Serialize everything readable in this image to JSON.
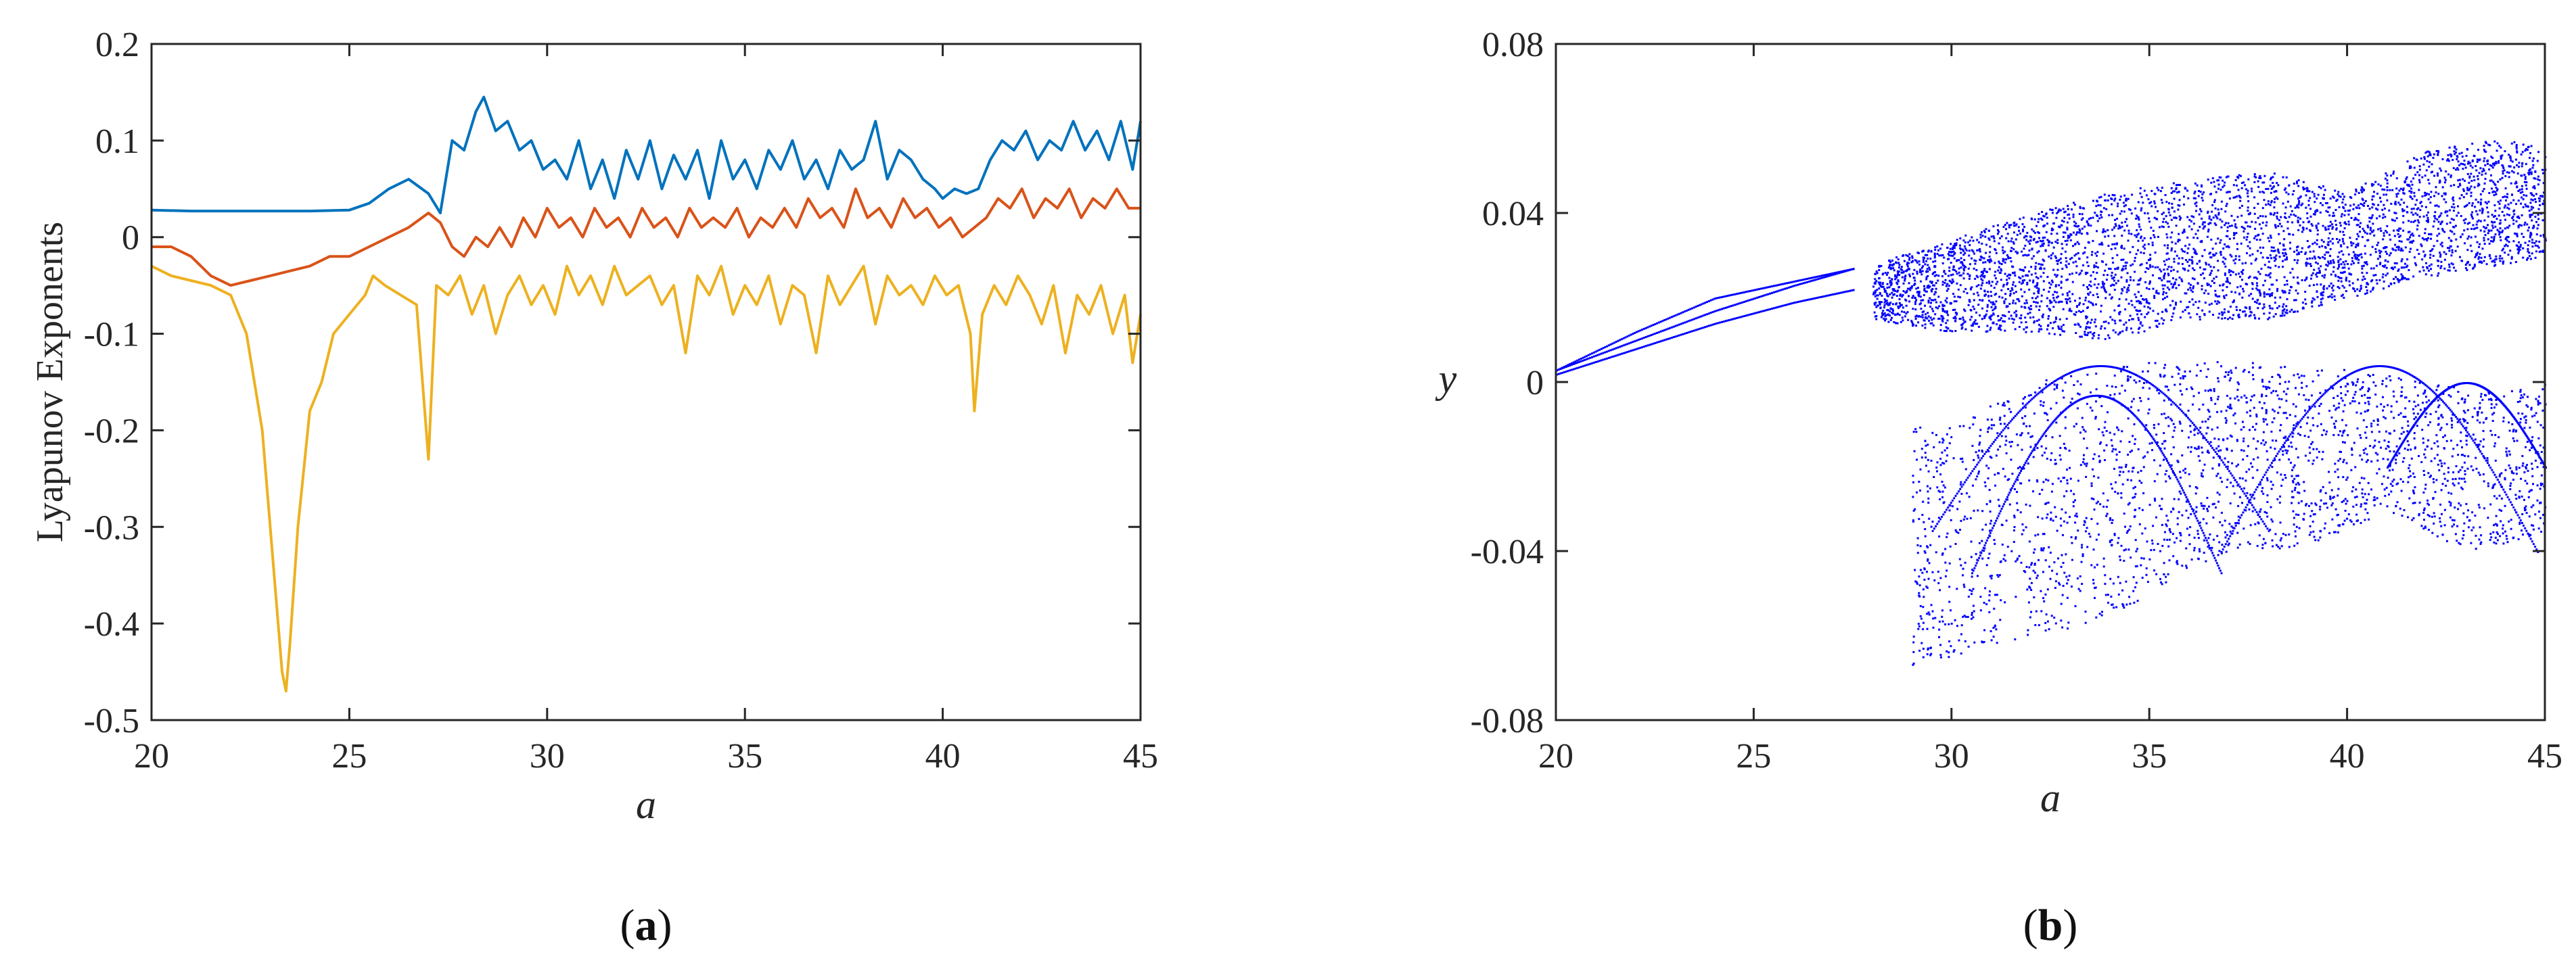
{
  "chart_data": [
    {
      "id": "a",
      "type": "line",
      "panel_label": {
        "open": "(",
        "letter": "a",
        "close": ")"
      },
      "xlabel": "a",
      "ylabel": "Lyapunov Exponents",
      "xlim": [
        20,
        45
      ],
      "ylim": [
        -0.5,
        0.2
      ],
      "xticks": [
        "20",
        "25",
        "30",
        "35",
        "40",
        "45"
      ],
      "yticks": [
        "0.2",
        "0.1",
        "0",
        "-0.1",
        "-0.2",
        "-0.3",
        "-0.4",
        "-0.5"
      ],
      "grid": false,
      "series": [
        {
          "color": "#0072BD",
          "x": [
            20,
            21,
            22,
            23,
            24,
            25,
            25.5,
            26,
            26.5,
            27,
            27.3,
            27.6,
            27.9,
            28.2,
            28.4,
            28.7,
            29,
            29.3,
            29.6,
            29.9,
            30.2,
            30.5,
            30.8,
            31.1,
            31.4,
            31.7,
            32,
            32.3,
            32.6,
            32.9,
            33.2,
            33.5,
            33.8,
            34.1,
            34.4,
            34.7,
            35,
            35.3,
            35.6,
            35.9,
            36.2,
            36.5,
            36.8,
            37.1,
            37.4,
            37.7,
            38,
            38.3,
            38.6,
            38.9,
            39.2,
            39.5,
            39.8,
            40,
            40.3,
            40.6,
            40.9,
            41.2,
            41.5,
            41.8,
            42.1,
            42.4,
            42.7,
            43,
            43.3,
            43.6,
            43.9,
            44.2,
            44.5,
            44.8,
            45
          ],
          "values": [
            0.028,
            0.027,
            0.027,
            0.027,
            0.027,
            0.028,
            0.035,
            0.05,
            0.06,
            0.045,
            0.025,
            0.1,
            0.09,
            0.13,
            0.145,
            0.11,
            0.12,
            0.09,
            0.1,
            0.07,
            0.08,
            0.06,
            0.1,
            0.05,
            0.08,
            0.04,
            0.09,
            0.06,
            0.1,
            0.05,
            0.085,
            0.06,
            0.09,
            0.04,
            0.1,
            0.06,
            0.08,
            0.05,
            0.09,
            0.07,
            0.1,
            0.06,
            0.08,
            0.05,
            0.09,
            0.07,
            0.08,
            0.12,
            0.06,
            0.09,
            0.08,
            0.06,
            0.05,
            0.04,
            0.05,
            0.045,
            0.05,
            0.08,
            0.1,
            0.09,
            0.11,
            0.08,
            0.1,
            0.09,
            0.12,
            0.09,
            0.11,
            0.08,
            0.12,
            0.07,
            0.12
          ]
        },
        {
          "color": "#D95319",
          "x": [
            20,
            20.5,
            21,
            21.5,
            22,
            22.5,
            23,
            23.5,
            24,
            24.5,
            25,
            25.5,
            26,
            26.5,
            27,
            27.3,
            27.6,
            27.9,
            28.2,
            28.5,
            28.8,
            29.1,
            29.4,
            29.7,
            30,
            30.3,
            30.6,
            30.9,
            31.2,
            31.5,
            31.8,
            32.1,
            32.4,
            32.7,
            33,
            33.3,
            33.6,
            33.9,
            34.2,
            34.5,
            34.8,
            35.1,
            35.4,
            35.7,
            36,
            36.3,
            36.6,
            36.9,
            37.2,
            37.5,
            37.8,
            38.1,
            38.4,
            38.7,
            39,
            39.3,
            39.6,
            39.9,
            40.2,
            40.5,
            40.8,
            41.1,
            41.4,
            41.7,
            42,
            42.3,
            42.6,
            42.9,
            43.2,
            43.5,
            43.8,
            44.1,
            44.4,
            44.7,
            45
          ],
          "values": [
            -0.01,
            -0.01,
            -0.02,
            -0.04,
            -0.05,
            -0.045,
            -0.04,
            -0.035,
            -0.03,
            -0.02,
            -0.02,
            -0.01,
            0.0,
            0.01,
            0.025,
            0.015,
            -0.01,
            -0.02,
            0.0,
            -0.01,
            0.01,
            -0.01,
            0.02,
            0.0,
            0.03,
            0.01,
            0.02,
            0.0,
            0.03,
            0.01,
            0.02,
            0.0,
            0.03,
            0.01,
            0.02,
            0.0,
            0.03,
            0.01,
            0.02,
            0.01,
            0.03,
            0.0,
            0.02,
            0.01,
            0.03,
            0.01,
            0.04,
            0.02,
            0.03,
            0.01,
            0.05,
            0.02,
            0.03,
            0.01,
            0.04,
            0.02,
            0.03,
            0.01,
            0.02,
            0.0,
            0.01,
            0.02,
            0.04,
            0.03,
            0.05,
            0.02,
            0.04,
            0.03,
            0.05,
            0.02,
            0.04,
            0.03,
            0.05,
            0.03,
            0.03
          ]
        },
        {
          "color": "#EDB120",
          "x": [
            20,
            20.5,
            21,
            21.5,
            22,
            22.4,
            22.8,
            23.1,
            23.3,
            23.4,
            23.5,
            23.7,
            24,
            24.3,
            24.6,
            25,
            25.4,
            25.6,
            25.9,
            26.3,
            26.7,
            27,
            27.2,
            27.5,
            27.8,
            28.1,
            28.4,
            28.7,
            29,
            29.3,
            29.6,
            29.9,
            30.2,
            30.5,
            30.8,
            31.1,
            31.4,
            31.7,
            32,
            32.3,
            32.6,
            32.9,
            33.2,
            33.5,
            33.8,
            34.1,
            34.4,
            34.7,
            35,
            35.3,
            35.6,
            35.9,
            36.2,
            36.5,
            36.8,
            37.1,
            37.4,
            37.7,
            38,
            38.3,
            38.6,
            38.9,
            39.2,
            39.5,
            39.8,
            40.1,
            40.4,
            40.7,
            40.8,
            41,
            41.3,
            41.6,
            41.9,
            42.2,
            42.5,
            42.8,
            43.1,
            43.4,
            43.7,
            44,
            44.3,
            44.6,
            44.8,
            45
          ],
          "values": [
            -0.03,
            -0.04,
            -0.045,
            -0.05,
            -0.06,
            -0.1,
            -0.2,
            -0.35,
            -0.45,
            -0.47,
            -0.42,
            -0.3,
            -0.18,
            -0.15,
            -0.1,
            -0.08,
            -0.06,
            -0.04,
            -0.05,
            -0.06,
            -0.07,
            -0.23,
            -0.05,
            -0.06,
            -0.04,
            -0.08,
            -0.05,
            -0.1,
            -0.06,
            -0.04,
            -0.07,
            -0.05,
            -0.08,
            -0.03,
            -0.06,
            -0.04,
            -0.07,
            -0.03,
            -0.06,
            -0.05,
            -0.04,
            -0.07,
            -0.05,
            -0.12,
            -0.04,
            -0.06,
            -0.03,
            -0.08,
            -0.05,
            -0.07,
            -0.04,
            -0.09,
            -0.05,
            -0.06,
            -0.12,
            -0.04,
            -0.07,
            -0.05,
            -0.03,
            -0.09,
            -0.04,
            -0.06,
            -0.05,
            -0.07,
            -0.04,
            -0.06,
            -0.05,
            -0.1,
            -0.18,
            -0.08,
            -0.05,
            -0.07,
            -0.04,
            -0.06,
            -0.09,
            -0.05,
            -0.12,
            -0.06,
            -0.08,
            -0.05,
            -0.1,
            -0.06,
            -0.13,
            -0.08
          ]
        }
      ]
    },
    {
      "id": "b",
      "type": "scatter",
      "panel_label": {
        "open": "(",
        "letter": "b",
        "close": ")"
      },
      "xlabel": "a",
      "ylabel": "y",
      "xlim": [
        20,
        45
      ],
      "ylim": [
        -0.08,
        0.08
      ],
      "xticks": [
        "20",
        "25",
        "30",
        "35",
        "40",
        "45"
      ],
      "yticks": [
        "0.08",
        "0.04",
        "0",
        "-0.04",
        "-0.08"
      ],
      "grid": false,
      "marker_color": "#0000FF",
      "branches": [
        {
          "x": [
            20,
            22,
            24,
            26,
            27.5
          ],
          "y": [
            0.003,
            0.01,
            0.017,
            0.023,
            0.027
          ]
        },
        {
          "x": [
            20,
            22,
            24,
            26,
            27.5
          ],
          "y": [
            0.002,
            0.008,
            0.014,
            0.019,
            0.022
          ]
        },
        {
          "x": [
            20,
            22,
            24,
            26,
            27.5
          ],
          "y": [
            0.003,
            0.012,
            0.02,
            0.024,
            0.027
          ]
        }
      ],
      "bands": [
        {
          "x": [
            28,
            30,
            32,
            34,
            36,
            38,
            40,
            42,
            44,
            45
          ],
          "y_min": [
            0.015,
            0.012,
            0.012,
            0.01,
            0.015,
            0.015,
            0.02,
            0.025,
            0.028,
            0.03
          ],
          "y_max": [
            0.028,
            0.034,
            0.04,
            0.045,
            0.048,
            0.05,
            0.045,
            0.055,
            0.058,
            0.055
          ],
          "density": 1
        },
        {
          "x": [
            29,
            30,
            31,
            32,
            33,
            34,
            35,
            36,
            37,
            38,
            39,
            40,
            41,
            42,
            43,
            44,
            45
          ],
          "y_min": [
            -0.068,
            -0.065,
            -0.062,
            -0.06,
            -0.058,
            -0.055,
            -0.05,
            -0.045,
            -0.04,
            -0.04,
            -0.038,
            -0.035,
            -0.03,
            -0.035,
            -0.04,
            -0.038,
            -0.035
          ],
          "y_max": [
            -0.01,
            -0.01,
            -0.005,
            0.0,
            0.002,
            0.004,
            0.005,
            0.005,
            0.005,
            0.005,
            0.004,
            0.003,
            0.002,
            0.0,
            -0.001,
            -0.002,
            0.0
          ],
          "density": 0.6
        }
      ],
      "arcs": [
        {
          "x_start": 30.5,
          "x_end": 36.8,
          "y_base": -0.045,
          "y_peak": -0.003
        },
        {
          "x_start": 29.5,
          "x_end": 38.0,
          "y_base": -0.035,
          "y_peak": 0.004
        },
        {
          "x_start": 36.8,
          "x_end": 44.8,
          "y_base": -0.04,
          "y_peak": 0.004
        },
        {
          "x_start": 41.0,
          "x_end": 45.0,
          "y_base": -0.02,
          "y_peak": 0.0
        }
      ]
    }
  ]
}
